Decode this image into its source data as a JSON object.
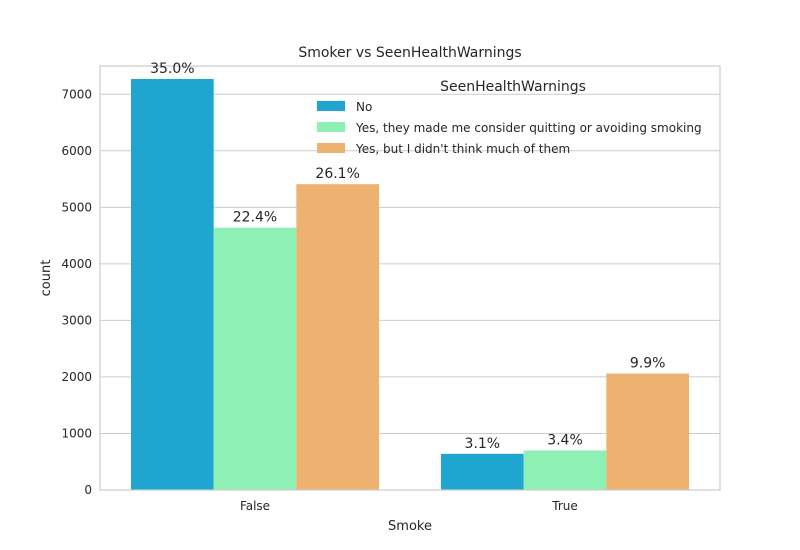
{
  "chart_data": {
    "type": "bar",
    "title": "Smoker vs SeenHealthWarnings",
    "xlabel": "Smoke",
    "ylabel": "count",
    "categories": [
      "False",
      "True"
    ],
    "ylim": [
      0,
      7500
    ],
    "yticks": [
      0,
      1000,
      2000,
      3000,
      4000,
      5000,
      6000,
      7000
    ],
    "grid": true,
    "legend": {
      "title": "SeenHealthWarnings",
      "placement": "top-right"
    },
    "series": [
      {
        "name": "No",
        "color": "#1ea6d0",
        "values": [
          7270,
          640
        ],
        "labels": [
          "35.0%",
          "3.1%"
        ]
      },
      {
        "name": "Yes, they made me consider quitting or avoiding smoking",
        "color": "#8ff0b5",
        "values": [
          4640,
          700
        ],
        "labels": [
          "22.4%",
          "3.4%"
        ]
      },
      {
        "name": "Yes, but I didn't think much of them",
        "color": "#edb270",
        "values": [
          5410,
          2060
        ],
        "labels": [
          "26.1%",
          "9.9%"
        ]
      }
    ]
  }
}
